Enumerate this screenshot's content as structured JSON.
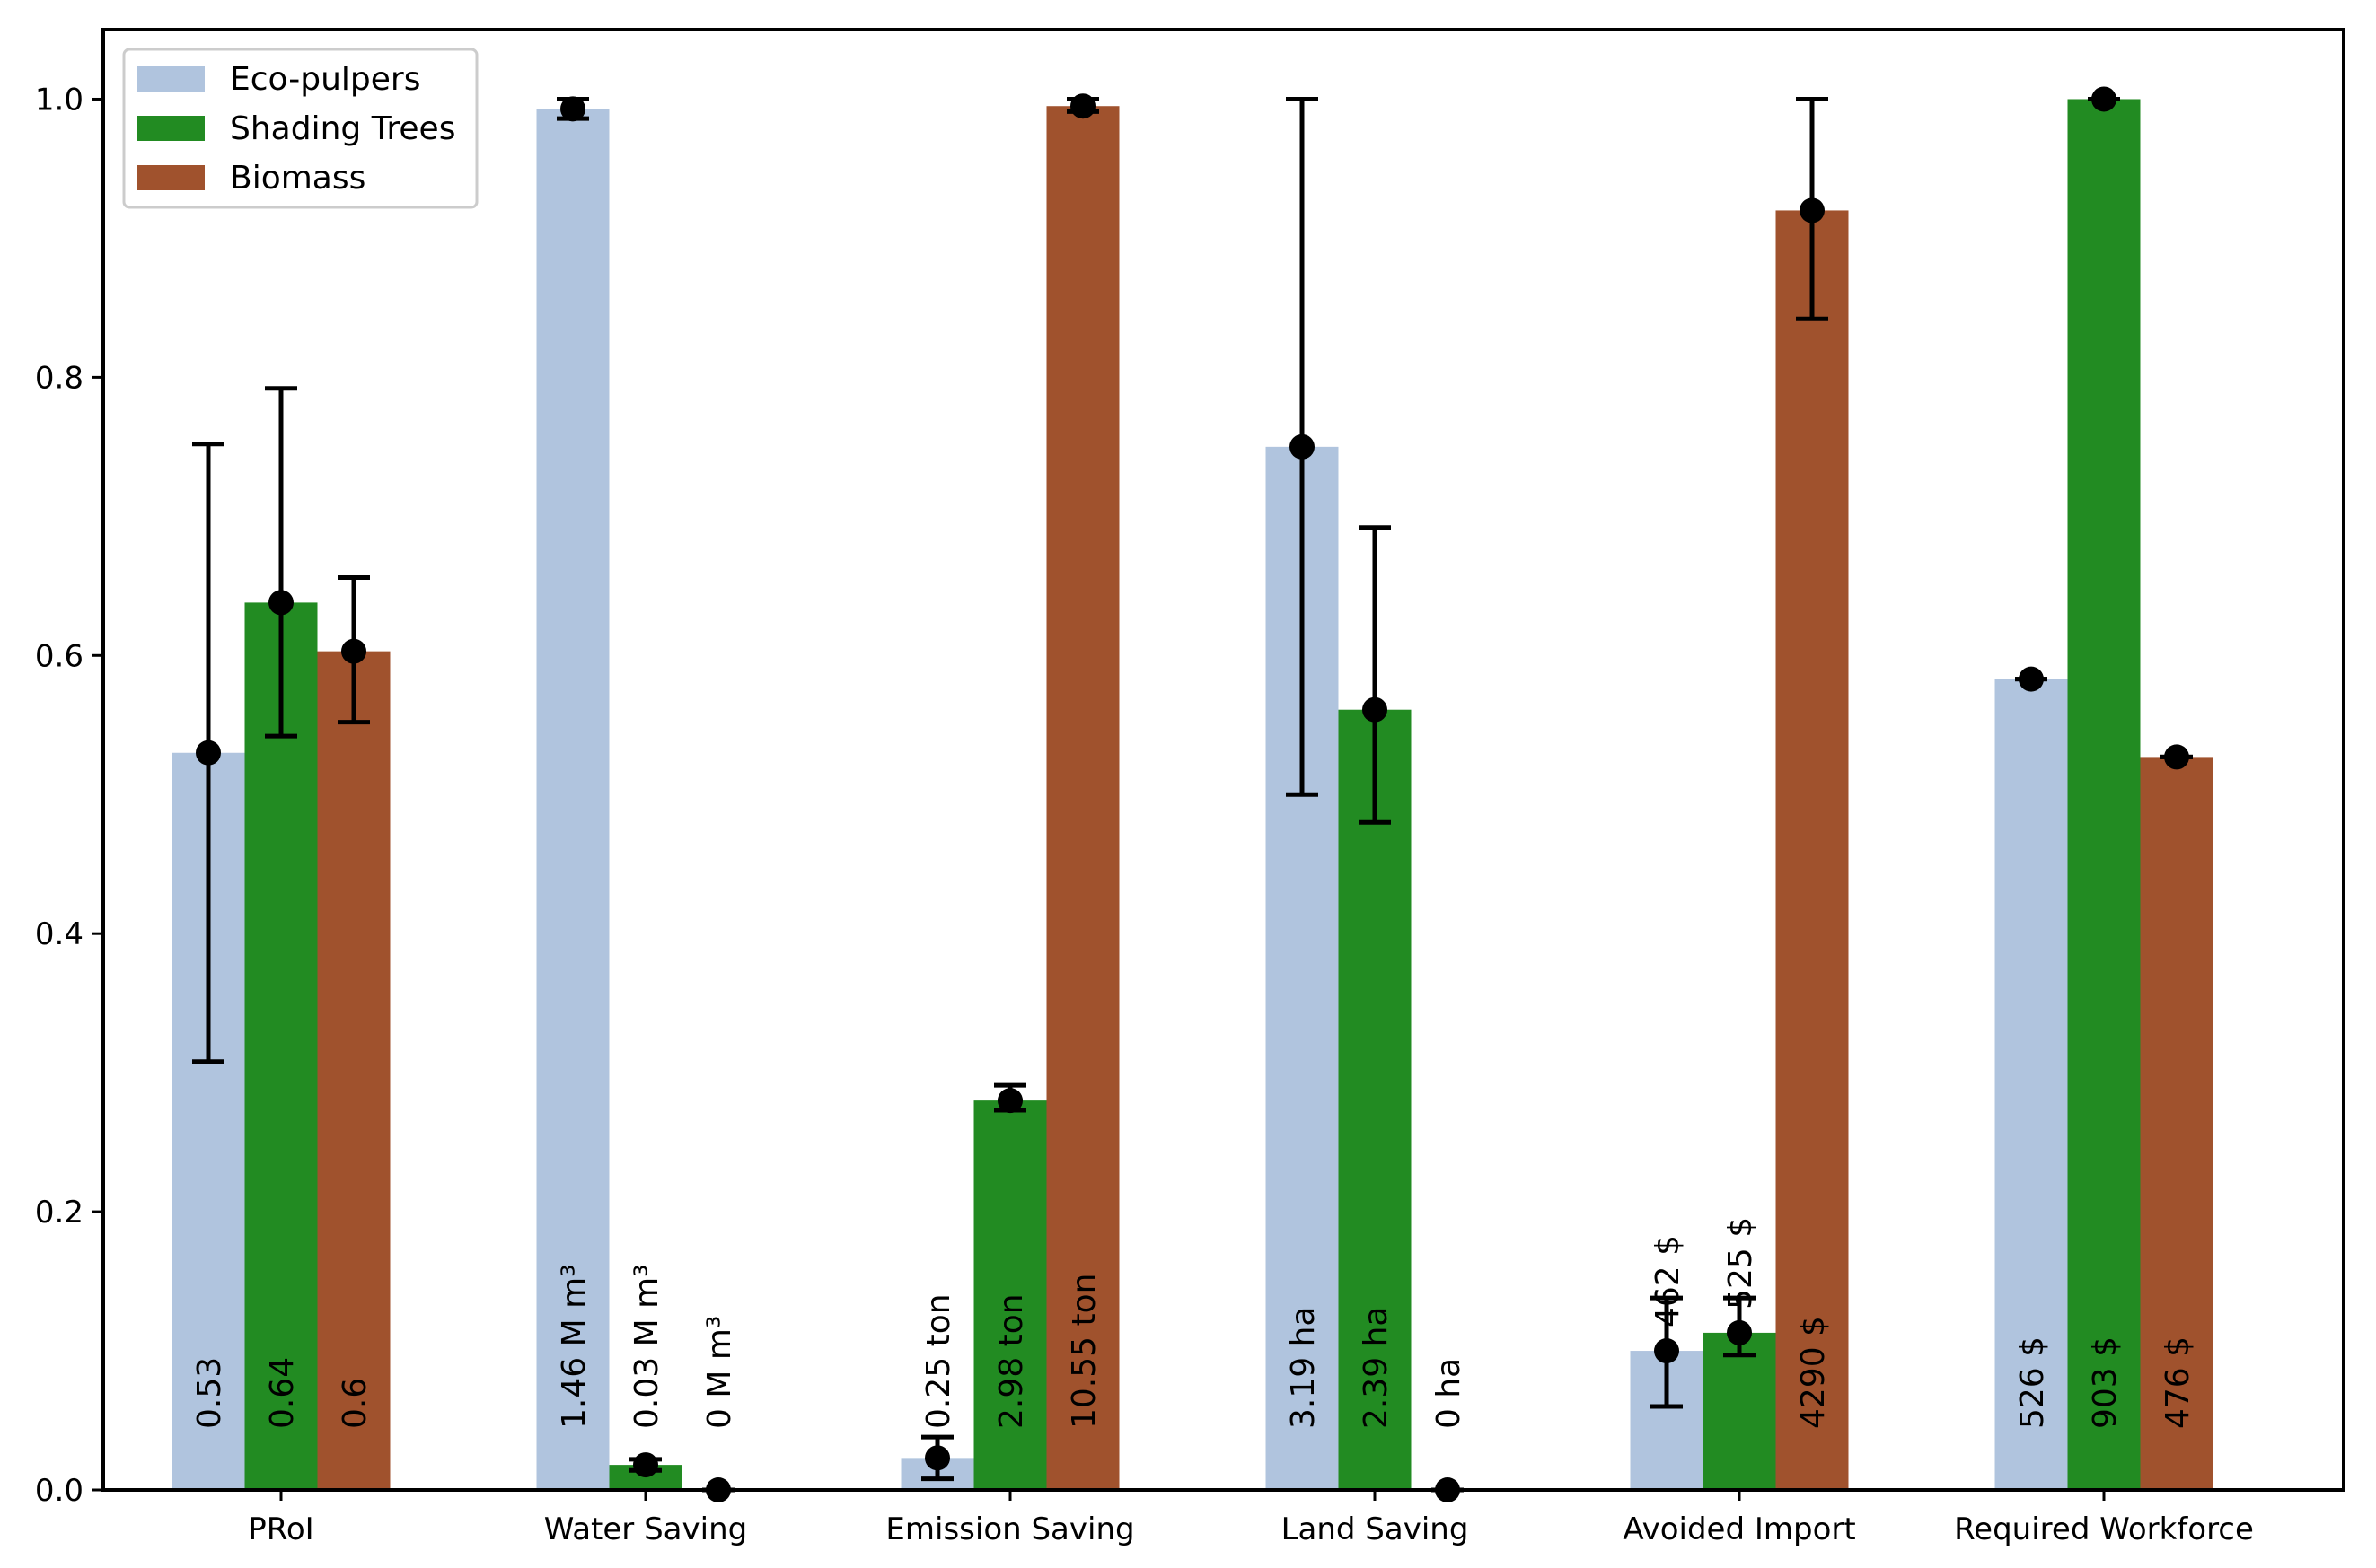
{
  "chart_data": {
    "type": "bar",
    "title": "",
    "xlabel": "",
    "ylabel": "",
    "ylim": [
      0,
      1.05
    ],
    "yticks": [
      "0.0",
      "0.2",
      "0.4",
      "0.6",
      "0.8",
      "1.0"
    ],
    "ytick_values": [
      0,
      0.2,
      0.4,
      0.6,
      0.8,
      1.0
    ],
    "categories": [
      "PRoI",
      "Water Saving",
      "Emission Saving",
      "Land Saving",
      "Avoided Import",
      "Required Workforce"
    ],
    "legend_position": "top-left",
    "grid": false,
    "series": [
      {
        "name": "Eco-pulpers",
        "color": "#b0c4de",
        "values": [
          0.53,
          0.993,
          0.023,
          0.75,
          0.1,
          0.583
        ],
        "point": [
          0.53,
          0.993,
          0.023,
          0.75,
          0.1,
          0.583
        ],
        "err_low": [
          0.308,
          0.986,
          0.008,
          0.5,
          0.06,
          0.583
        ],
        "err_high": [
          0.752,
          1.0,
          0.038,
          1.0,
          0.138,
          0.583
        ],
        "labels": [
          "0.53",
          "1.46 M m³",
          "0.25 ton",
          "3.19 ha",
          "462 $",
          "526 $"
        ],
        "label_pos": [
          "inside",
          "inside",
          "inside",
          "inside",
          "above",
          "inside"
        ]
      },
      {
        "name": "Shading Trees",
        "color": "#228b22",
        "values": [
          0.638,
          0.018,
          0.28,
          0.561,
          0.113,
          1.0
        ],
        "point": [
          0.638,
          0.018,
          0.28,
          0.561,
          0.113,
          1.0
        ],
        "err_low": [
          0.542,
          0.014,
          0.273,
          0.48,
          0.097,
          1.0
        ],
        "err_high": [
          0.792,
          0.022,
          0.291,
          0.692,
          0.138,
          1.0
        ],
        "labels": [
          "0.64",
          "0.03 M m³",
          "2.98 ton",
          "2.39 ha",
          "525 $",
          "903 $"
        ],
        "label_pos": [
          "inside",
          "inside",
          "inside",
          "inside",
          "above",
          "inside"
        ]
      },
      {
        "name": "Biomass",
        "color": "#a0522d",
        "values": [
          0.603,
          0.0,
          0.995,
          0.0,
          0.92,
          0.527
        ],
        "point": [
          0.603,
          0.0,
          0.995,
          0.0,
          0.92,
          0.527
        ],
        "err_low": [
          0.552,
          0.0,
          0.991,
          0.0,
          0.842,
          0.527
        ],
        "err_high": [
          0.656,
          0.0,
          1.0,
          0.0,
          1.0,
          0.527
        ],
        "labels": [
          "0.6",
          "0 M m³",
          "10.55 ton",
          "0 ha",
          "4290 $",
          "476 $"
        ],
        "label_pos": [
          "inside",
          "inside",
          "inside",
          "inside",
          "inside",
          "inside"
        ]
      }
    ]
  }
}
